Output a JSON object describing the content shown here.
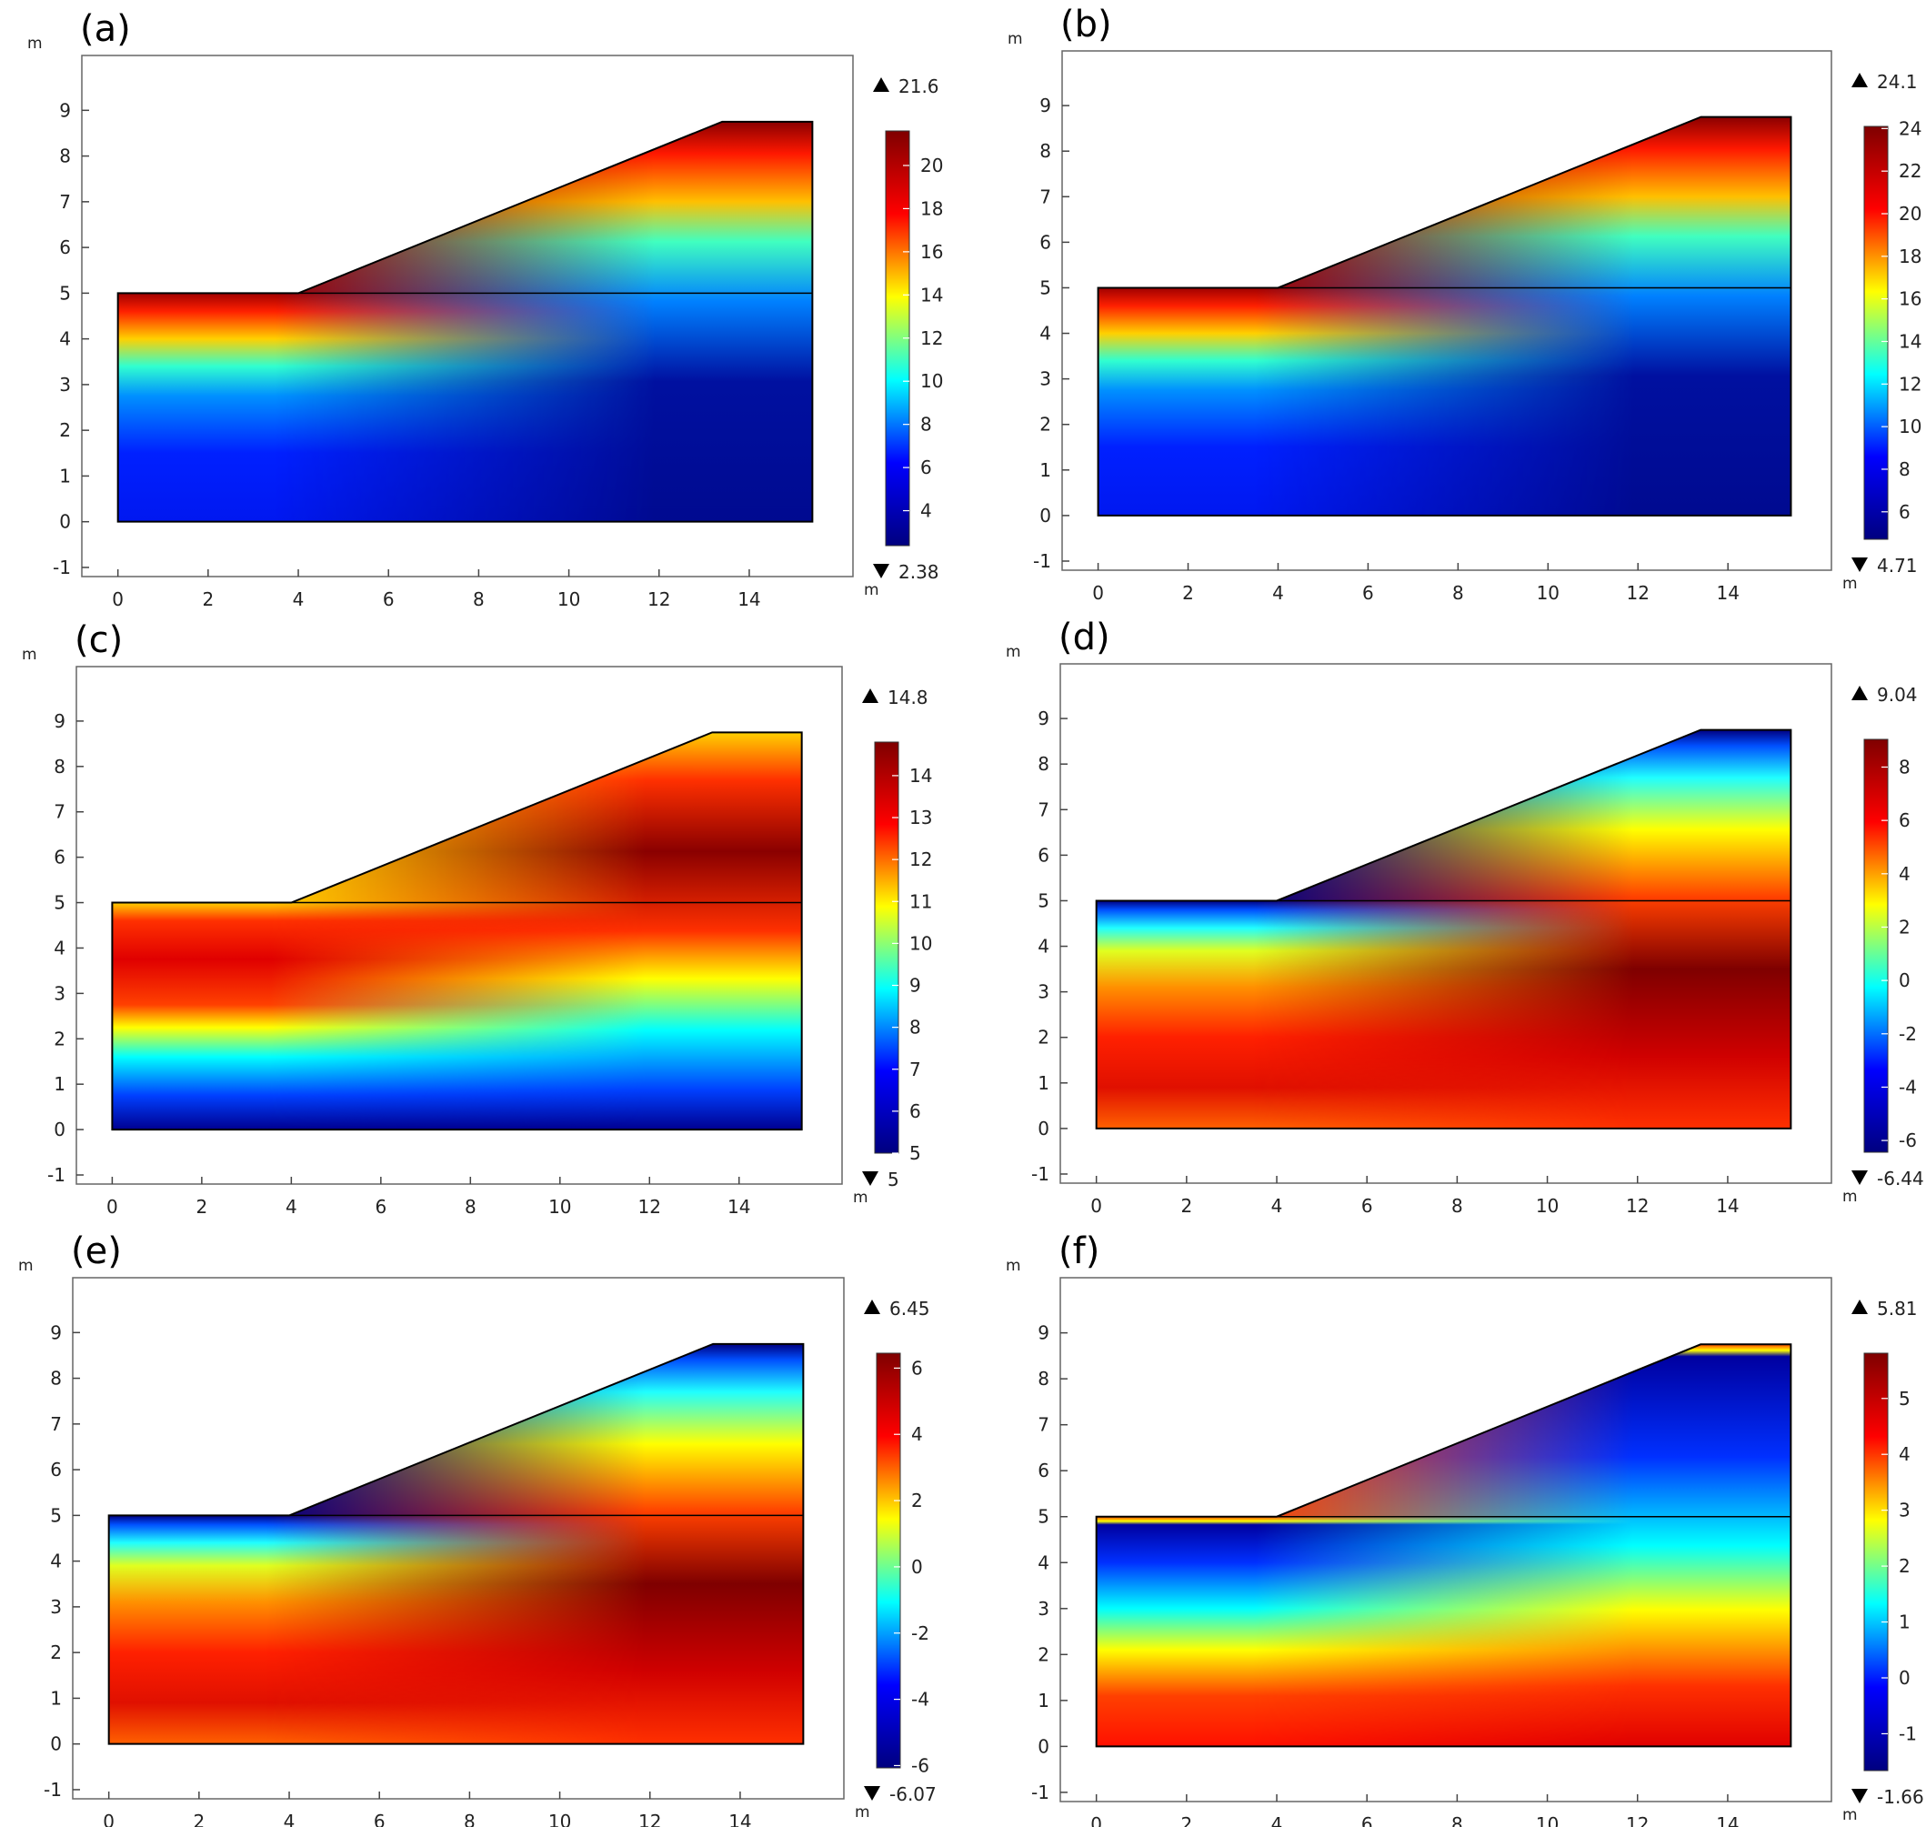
{
  "colormap": [
    "#00007f",
    "#0000ff",
    "#00ffff",
    "#ffff00",
    "#ff0000",
    "#7f0000"
  ],
  "chart_data": [
    {
      "type": "heatmap",
      "panel_label": "(a)",
      "xlabel": "m",
      "ylabel": "m",
      "xlim": [
        -0.8,
        16.3
      ],
      "ylim": [
        -1.2,
        10.2
      ],
      "xticks": [
        "0",
        "2",
        "4",
        "6",
        "8",
        "10",
        "12",
        "14"
      ],
      "yticks": [
        "-1",
        "0",
        "1",
        "2",
        "3",
        "4",
        "5",
        "6",
        "7",
        "8",
        "9"
      ],
      "geometry": {
        "crest_x": 4,
        "toe_x": 13.4,
        "lower_top_y": 5,
        "upper_top_y": 8.75,
        "right_x": 15.4
      },
      "field_pattern": "increasing-toward-surface",
      "max_label": "21.6",
      "min_label": "2.38",
      "colorbar_range": [
        2.38,
        21.6
      ],
      "colorbar_ticks": [
        "4",
        "6",
        "8",
        "10",
        "12",
        "14",
        "16",
        "18",
        "20"
      ]
    },
    {
      "type": "heatmap",
      "panel_label": "(b)",
      "xlabel": "m",
      "ylabel": "m",
      "xlim": [
        -0.8,
        16.3
      ],
      "ylim": [
        -1.2,
        10.2
      ],
      "xticks": [
        "0",
        "2",
        "4",
        "6",
        "8",
        "10",
        "12",
        "14"
      ],
      "yticks": [
        "-1",
        "0",
        "1",
        "2",
        "3",
        "4",
        "5",
        "6",
        "7",
        "8",
        "9"
      ],
      "geometry": {
        "crest_x": 4,
        "toe_x": 13.4,
        "lower_top_y": 5,
        "upper_top_y": 8.75,
        "right_x": 15.4
      },
      "field_pattern": "increasing-toward-surface",
      "max_label": "24.1",
      "min_label": "4.71",
      "colorbar_range": [
        4.71,
        24.1
      ],
      "colorbar_ticks": [
        "6",
        "8",
        "10",
        "12",
        "14",
        "16",
        "18",
        "20",
        "22",
        "24"
      ]
    },
    {
      "type": "heatmap",
      "panel_label": "(c)",
      "xlabel": "m",
      "ylabel": "m",
      "xlim": [
        -0.8,
        16.3
      ],
      "ylim": [
        -1.2,
        10.2
      ],
      "xticks": [
        "0",
        "2",
        "4",
        "6",
        "8",
        "10",
        "12",
        "14"
      ],
      "yticks": [
        "-1",
        "0",
        "1",
        "2",
        "3",
        "4",
        "5",
        "6",
        "7",
        "8",
        "9"
      ],
      "geometry": {
        "crest_x": 4,
        "toe_x": 13.4,
        "lower_top_y": 5,
        "upper_top_y": 8.75,
        "right_x": 15.4
      },
      "field_pattern": "peak-below-surface",
      "max_label": "14.8",
      "min_label": "5",
      "colorbar_range": [
        5,
        14.8
      ],
      "colorbar_ticks": [
        "5",
        "6",
        "7",
        "8",
        "9",
        "10",
        "11",
        "12",
        "13",
        "14"
      ]
    },
    {
      "type": "heatmap",
      "panel_label": "(d)",
      "xlabel": "m",
      "ylabel": "m",
      "xlim": [
        -0.8,
        16.3
      ],
      "ylim": [
        -1.2,
        10.2
      ],
      "xticks": [
        "0",
        "2",
        "4",
        "6",
        "8",
        "10",
        "12",
        "14"
      ],
      "yticks": [
        "-1",
        "0",
        "1",
        "2",
        "3",
        "4",
        "5",
        "6",
        "7",
        "8",
        "9"
      ],
      "geometry": {
        "crest_x": 4,
        "toe_x": 13.4,
        "lower_top_y": 5,
        "upper_top_y": 8.75,
        "right_x": 15.4
      },
      "field_pattern": "low-at-surface-high-at-depth",
      "max_label": "9.04",
      "min_label": "-6.44",
      "colorbar_range": [
        -6.44,
        9.04
      ],
      "colorbar_ticks": [
        "-6",
        "-4",
        "-2",
        "0",
        "2",
        "4",
        "6",
        "8"
      ]
    },
    {
      "type": "heatmap",
      "panel_label": "(e)",
      "xlabel": "m",
      "ylabel": "m",
      "xlim": [
        -0.8,
        16.3
      ],
      "ylim": [
        -1.2,
        10.2
      ],
      "xticks": [
        "0",
        "2",
        "4",
        "6",
        "8",
        "10",
        "12",
        "14"
      ],
      "yticks": [
        "-1",
        "0",
        "1",
        "2",
        "3",
        "4",
        "5",
        "6",
        "7",
        "8",
        "9"
      ],
      "geometry": {
        "crest_x": 4,
        "toe_x": 13.4,
        "lower_top_y": 5,
        "upper_top_y": 8.75,
        "right_x": 15.4
      },
      "field_pattern": "low-at-surface-high-at-depth",
      "max_label": "6.45",
      "min_label": "-6.07",
      "colorbar_range": [
        -6.07,
        6.45
      ],
      "colorbar_ticks": [
        "-6",
        "-4",
        "-2",
        "0",
        "2",
        "4",
        "6"
      ]
    },
    {
      "type": "heatmap",
      "panel_label": "(f)",
      "xlabel": "m",
      "ylabel": "m",
      "xlim": [
        -0.8,
        16.3
      ],
      "ylim": [
        -1.2,
        10.2
      ],
      "xticks": [
        "0",
        "2",
        "4",
        "6",
        "8",
        "10",
        "12",
        "14"
      ],
      "yticks": [
        "-1",
        "0",
        "1",
        "2",
        "3",
        "4",
        "5",
        "6",
        "7",
        "8",
        "9"
      ],
      "geometry": {
        "crest_x": 4,
        "toe_x": 13.4,
        "lower_top_y": 5,
        "upper_top_y": 8.75,
        "right_x": 15.4
      },
      "field_pattern": "thin-high-skin-then-low-then-high-at-depth",
      "max_label": "5.81",
      "min_label": "-1.66",
      "colorbar_range": [
        -1.66,
        5.81
      ],
      "colorbar_ticks": [
        "-1",
        "0",
        "1",
        "2",
        "3",
        "4",
        "5"
      ]
    }
  ]
}
